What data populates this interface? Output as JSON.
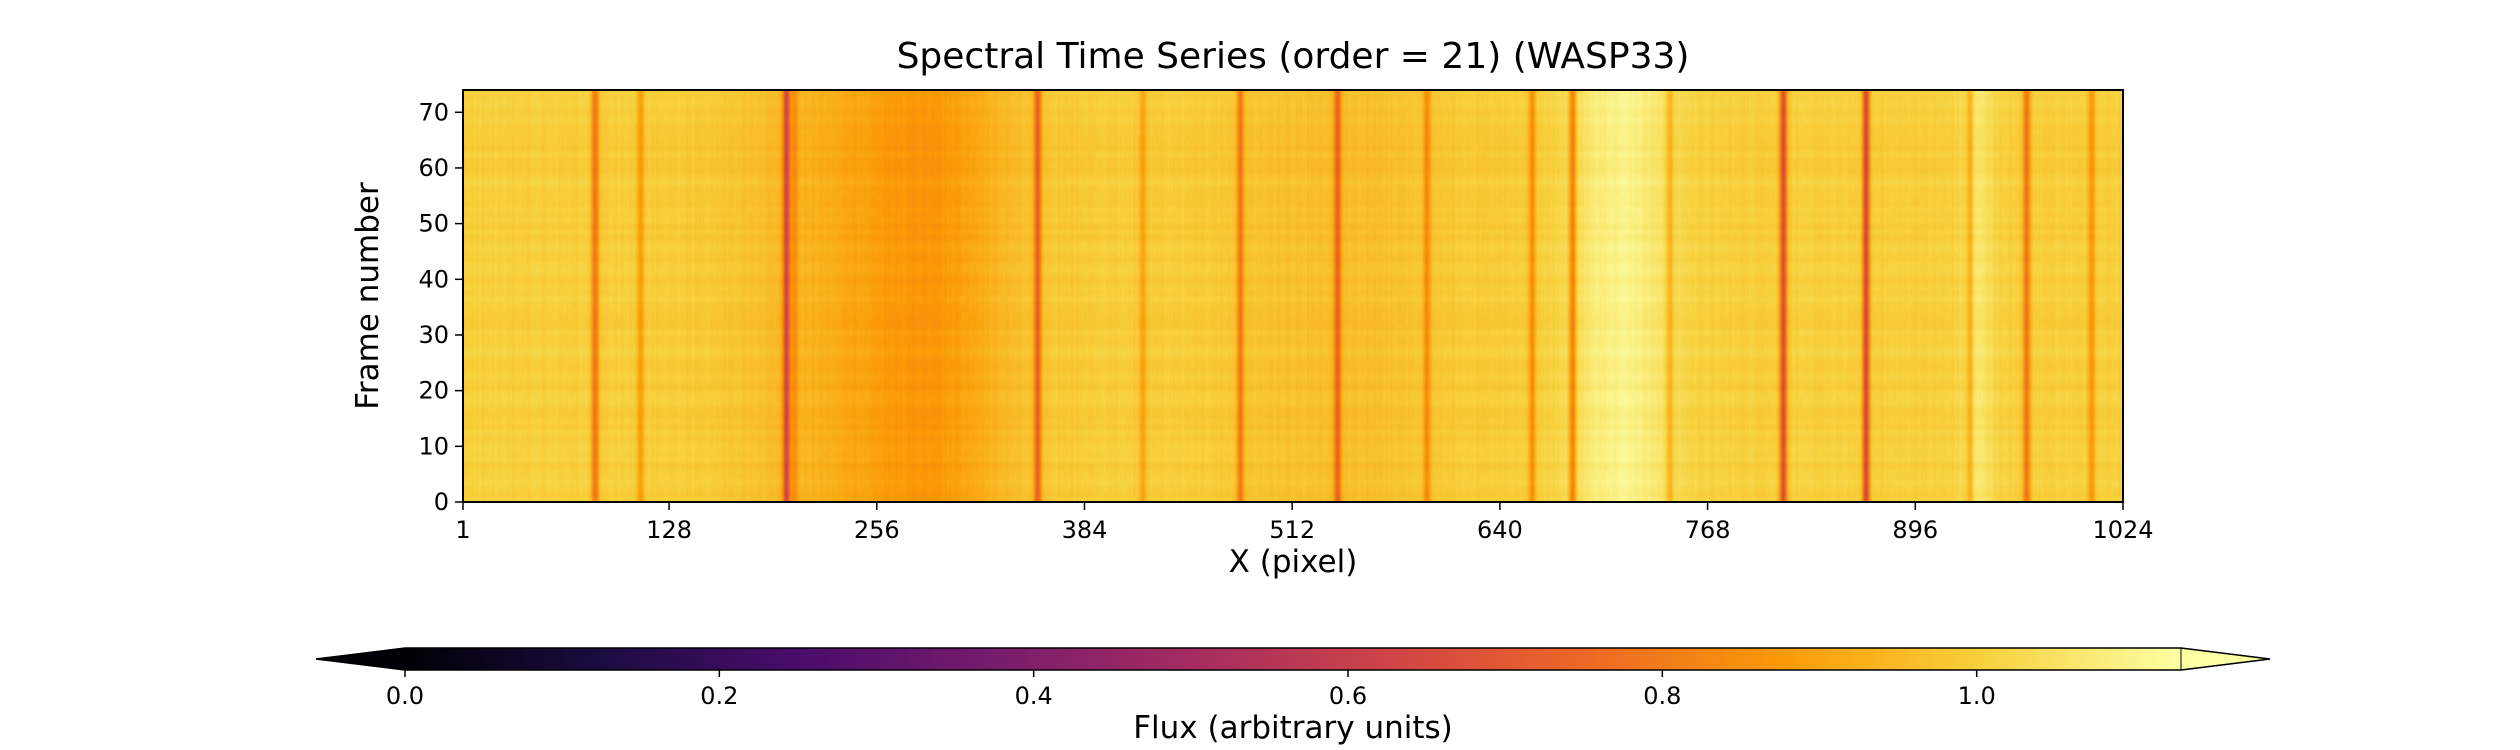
{
  "chart_data": {
    "type": "heatmap",
    "title": "Spectral Time Series (order = 21) (WASP33)",
    "xlabel": "X (pixel)",
    "ylabel": "Frame number",
    "xlim": [
      1,
      1024
    ],
    "ylim": [
      0,
      74
    ],
    "xticks": [
      "1",
      "128",
      "256",
      "384",
      "512",
      "640",
      "768",
      "896",
      "1024"
    ],
    "yticks": [
      "0",
      "10",
      "20",
      "30",
      "40",
      "50",
      "60",
      "70"
    ],
    "colormap": "inferno",
    "colorbar": {
      "label": "Flux (arbitrary units)",
      "range": [
        0.0,
        1.13
      ],
      "ticks": [
        "0.0",
        "0.2",
        "0.4",
        "0.6",
        "0.8",
        "1.0"
      ],
      "extend": "both",
      "placement": "bottom"
    },
    "continuum_flux": 1.0,
    "broad_features": [
      {
        "center": 260,
        "width": 80,
        "depth": 0.09
      },
      {
        "center": 290,
        "width": 40,
        "depth": 0.05
      },
      {
        "center": 540,
        "width": 70,
        "depth": 0.04
      }
    ],
    "absorption_lines": [
      {
        "pixel": 82,
        "depth": 0.22
      },
      {
        "pixel": 110,
        "depth": 0.12
      },
      {
        "pixel": 200,
        "depth": 0.32
      },
      {
        "pixel": 205,
        "depth": 0.1
      },
      {
        "pixel": 355,
        "depth": 0.26
      },
      {
        "pixel": 420,
        "depth": 0.1
      },
      {
        "pixel": 480,
        "depth": 0.2
      },
      {
        "pixel": 540,
        "depth": 0.24
      },
      {
        "pixel": 595,
        "depth": 0.14
      },
      {
        "pixel": 660,
        "depth": 0.16
      },
      {
        "pixel": 685,
        "depth": 0.22
      },
      {
        "pixel": 745,
        "depth": 0.1
      },
      {
        "pixel": 815,
        "depth": 0.34
      },
      {
        "pixel": 866,
        "depth": 0.36
      },
      {
        "pixel": 930,
        "depth": 0.12
      },
      {
        "pixel": 965,
        "depth": 0.22
      },
      {
        "pixel": 1005,
        "depth": 0.14
      }
    ],
    "bright_regions": [
      {
        "center": 715,
        "width": 30,
        "height": 0.1
      },
      {
        "center": 935,
        "width": 10,
        "height": 0.06
      }
    ],
    "colormap_stops": [
      "#000004",
      "#1b0c41",
      "#4a0c6b",
      "#781c6d",
      "#a52c60",
      "#cf4446",
      "#ed6925",
      "#fb9b06",
      "#f7d13d",
      "#fcffa4"
    ]
  }
}
